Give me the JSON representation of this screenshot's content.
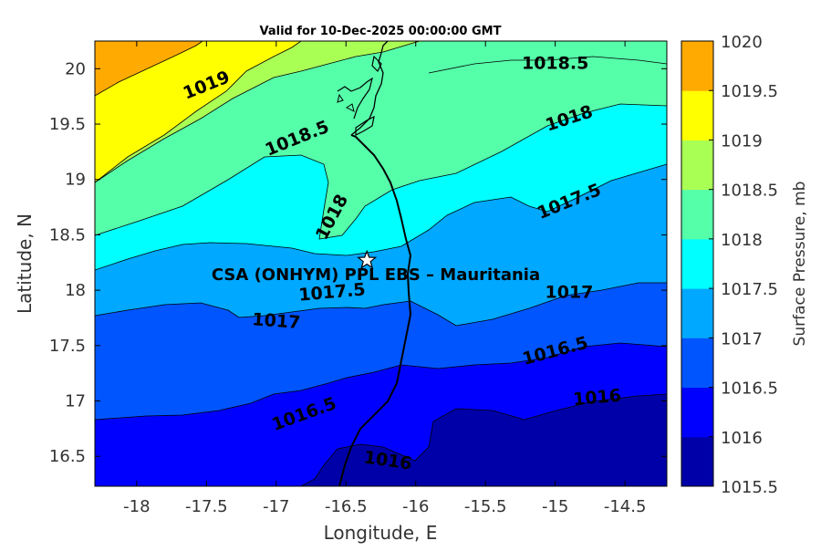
{
  "map": {
    "title": "Valid for 10-Dec-2025 00:00:00 GMT",
    "xlabel": "Longitude, E",
    "ylabel": "Latitude, N",
    "x_range": [
      -18.3,
      -14.2
    ],
    "y_range": [
      16.23,
      20.25
    ],
    "x_ticks": [
      "-18",
      "-17.5",
      "-17",
      "-16.5",
      "-16",
      "-15.5",
      "-15",
      "-14.5"
    ],
    "y_ticks": [
      "16.5",
      "17",
      "17.5",
      "18",
      "18.5",
      "19",
      "19.5",
      "20"
    ],
    "contour_labels": [
      {
        "text": "1019",
        "lon": -17.5,
        "lat": 19.85,
        "angle": -22
      },
      {
        "text": "1018.5",
        "lon": -16.85,
        "lat": 19.37,
        "angle": -22
      },
      {
        "text": "1018.5",
        "lon": -15.0,
        "lat": 20.05,
        "angle": 0
      },
      {
        "text": "1018",
        "lon": -14.9,
        "lat": 19.55,
        "angle": -18
      },
      {
        "text": "1018",
        "lon": -16.6,
        "lat": 18.66,
        "angle": -62
      },
      {
        "text": "1017.5",
        "lon": -14.9,
        "lat": 18.8,
        "angle": -22
      },
      {
        "text": "1017.5",
        "lon": -16.6,
        "lat": 17.98,
        "angle": -5
      },
      {
        "text": "1017",
        "lon": -14.9,
        "lat": 17.98,
        "angle": 0
      },
      {
        "text": "1017",
        "lon": -17.0,
        "lat": 17.72,
        "angle": 4
      },
      {
        "text": "1016.5",
        "lon": -15.0,
        "lat": 17.45,
        "angle": -15
      },
      {
        "text": "1016.5",
        "lon": -16.8,
        "lat": 16.88,
        "angle": -20
      },
      {
        "text": "1016",
        "lon": -14.7,
        "lat": 17.03,
        "angle": -5
      },
      {
        "text": "1016",
        "lon": -16.2,
        "lat": 16.46,
        "angle": 8
      }
    ],
    "station": {
      "label": "CSA (ONHYM) PPL EBS  – Mauritania",
      "lon": -16.35,
      "lat": 18.27
    }
  },
  "colorbar": {
    "label": "Surface Pressure, mb",
    "levels": [
      "1015.5",
      "1016",
      "1016.5",
      "1017",
      "1017.5",
      "1018",
      "1018.5",
      "1019",
      "1019.5",
      "1020"
    ],
    "colors": [
      "#0000a8",
      "#0000ff",
      "#0055ff",
      "#00a8ff",
      "#00ffff",
      "#55ffaa",
      "#aaff55",
      "#ffff00",
      "#ffaa00",
      "#ff5500"
    ]
  }
}
